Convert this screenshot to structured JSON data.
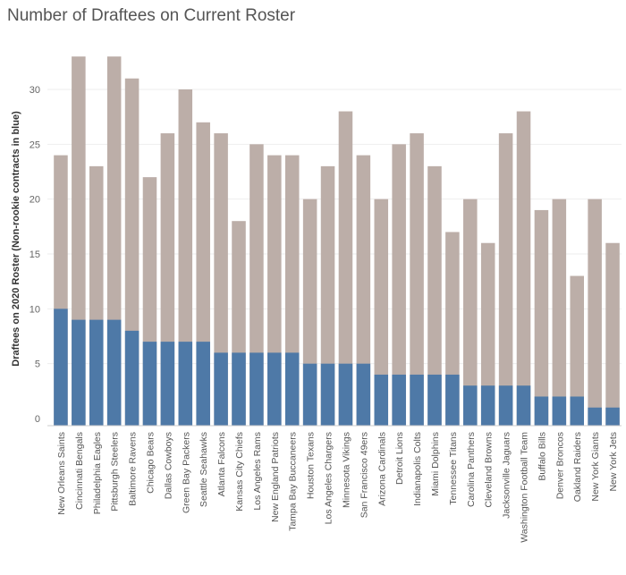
{
  "chart_data": {
    "type": "bar",
    "title": "Number of Draftees on Current Roster",
    "xlabel": "",
    "ylabel": "Draftees on 2020 Roster (Non-rookie contracts in blue)",
    "ylim": [
      0,
      33
    ],
    "yticks": [
      0,
      5,
      10,
      15,
      20,
      25,
      30
    ],
    "grid": true,
    "colors": {
      "total": "#bcaea8",
      "non_rookie": "#4e79a7",
      "axis": "#cccccc",
      "gridline": "#eeeeee"
    },
    "categories": [
      "New Orleans Saints",
      "Cincinnati Bengals",
      "Philadelphia Eagles",
      "Pittsburgh Steelers",
      "Baltimore Ravens",
      "Chicago Bears",
      "Dallas Cowboys",
      "Green Bay Packers",
      "Seattle Seahawks",
      "Atlanta Falcons",
      "Kansas City Chiefs",
      "Los Angeles Rams",
      "New England Patriots",
      "Tampa Bay Buccaneers",
      "Houston Texans",
      "Los Angeles Chargers",
      "Minnesota Vikings",
      "San Francisco 49ers",
      "Arizona Cardinals",
      "Detroit Lions",
      "Indianapolis Colts",
      "Miami Dolphins",
      "Tennessee Titans",
      "Carolina Panthers",
      "Cleveland Browns",
      "Jacksonville Jaguars",
      "Washington Football Team",
      "Buffalo Bills",
      "Denver Broncos",
      "Oakland Raiders",
      "New York Giants",
      "New York Jets"
    ],
    "series": [
      {
        "values": [
          24,
          33,
          23,
          33,
          31,
          22,
          26,
          30,
          27,
          26,
          18,
          25,
          24,
          24,
          20,
          23,
          28,
          24,
          20,
          25,
          26,
          23,
          17,
          20,
          16,
          26,
          28,
          19,
          20,
          13,
          20,
          16
        ]
      },
      {
        "values": [
          10,
          9,
          9,
          9,
          8,
          7,
          7,
          7,
          7,
          6,
          6,
          6,
          6,
          6,
          5,
          5,
          5,
          5,
          4,
          4,
          4,
          4,
          4,
          3,
          3,
          3,
          3,
          2,
          2,
          2,
          1,
          1
        ]
      }
    ]
  }
}
